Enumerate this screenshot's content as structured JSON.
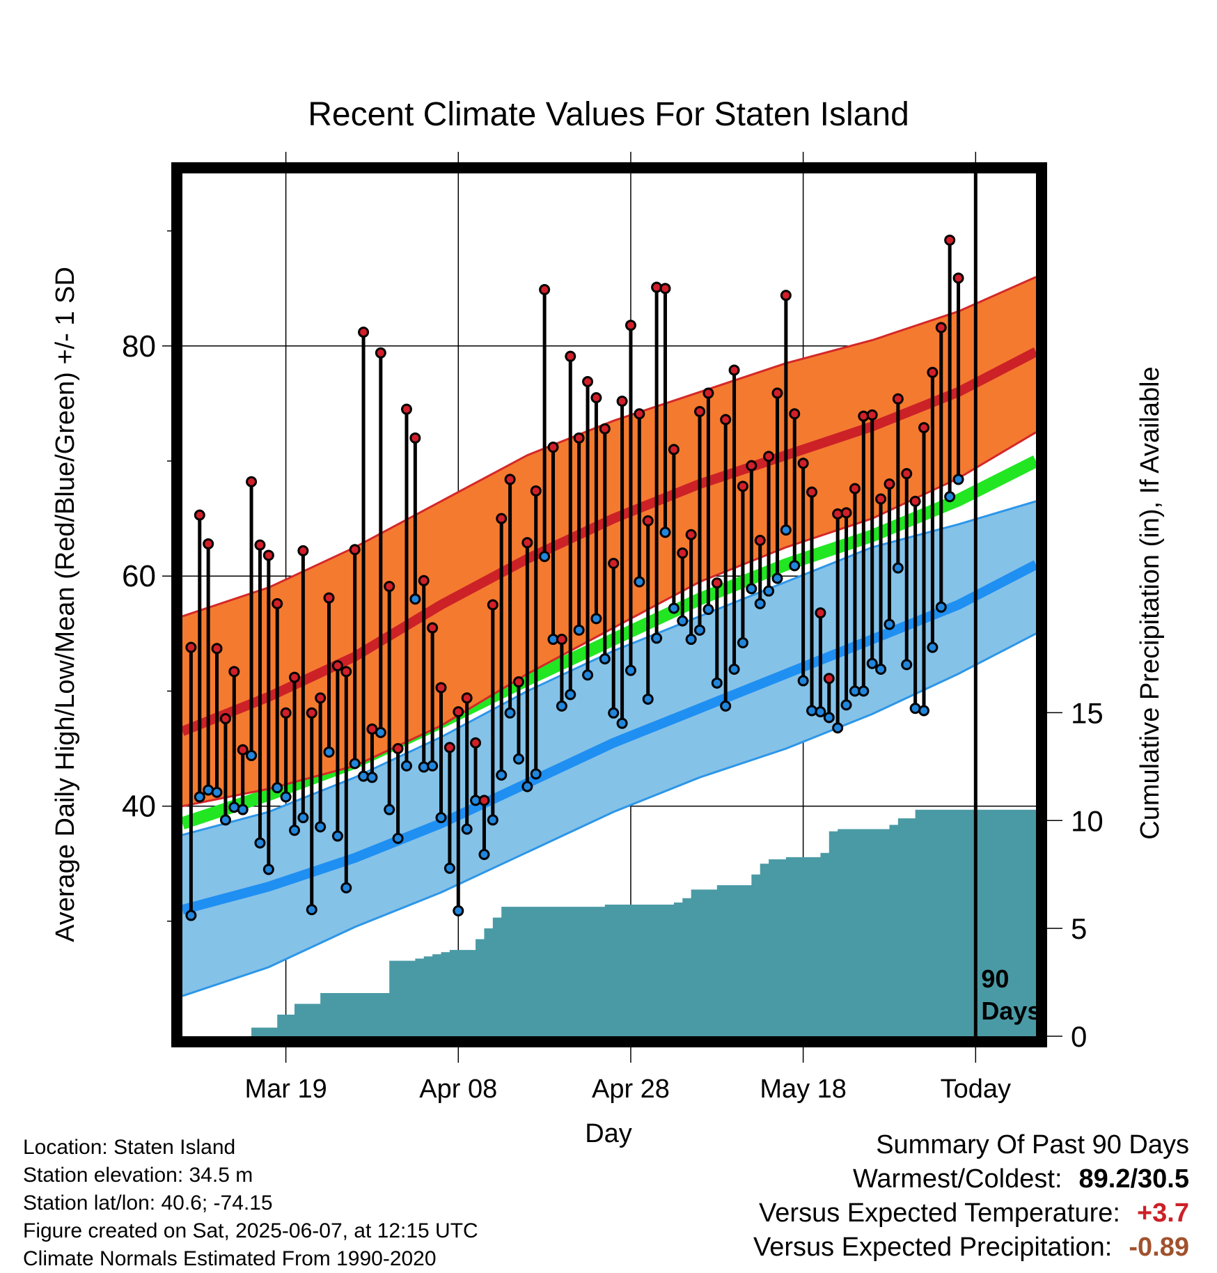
{
  "chart_data": {
    "type": "line",
    "title": "Recent Climate Values For Staten Island",
    "xlabel": "Day",
    "ylabel_left": "Average Daily High/Low/Mean (Red/Blue/Green) +/- 1 SD",
    "ylabel_right": "Cumulative Precipitation (in), If Available",
    "x_tick_labels": [
      "Mar 19",
      "Apr 08",
      "Apr 28",
      "May 18",
      "Today"
    ],
    "x_tick_days": [
      12,
      32,
      52,
      72,
      92
    ],
    "x_range_days": [
      0,
      99
    ],
    "y_left_range": [
      20,
      95
    ],
    "y_left_ticks": [
      {
        "value": 40,
        "label": "40"
      },
      {
        "value": 60,
        "label": "60"
      },
      {
        "value": 80,
        "label": "80"
      }
    ],
    "y_left_minor_ticks": [
      30,
      50,
      70,
      90
    ],
    "y_right_range": [
      0,
      40
    ],
    "y_right_ticks": [
      {
        "value": 0,
        "label": "0"
      },
      {
        "value": 5,
        "label": "5"
      },
      {
        "value": 10,
        "label": "10"
      },
      {
        "value": 15,
        "label": "15"
      }
    ],
    "today_marker": {
      "day": 92,
      "label_line1": "90",
      "label_line2": "Days"
    },
    "normals": {
      "days": [
        0,
        10,
        20,
        30,
        40,
        50,
        60,
        70,
        80,
        90,
        99
      ],
      "high_mean": [
        46.5,
        49.5,
        53.0,
        57.5,
        61.5,
        65.0,
        68.0,
        70.5,
        73.0,
        76.0,
        79.5
      ],
      "high_upper": [
        56.5,
        59.0,
        62.5,
        66.5,
        70.5,
        73.5,
        76.0,
        78.5,
        80.5,
        83.0,
        86.0
      ],
      "high_lower": [
        40.0,
        41.5,
        43.5,
        47.0,
        51.5,
        55.5,
        59.5,
        62.5,
        65.0,
        68.5,
        72.5
      ],
      "mean": [
        38.5,
        41.0,
        43.8,
        47.3,
        51.0,
        54.5,
        58.0,
        61.0,
        63.5,
        66.6,
        70.0
      ],
      "low_mean": [
        31.0,
        33.0,
        35.5,
        38.5,
        42.0,
        45.5,
        48.5,
        51.5,
        54.5,
        57.5,
        61.0
      ],
      "low_upper": [
        37.5,
        39.5,
        42.5,
        46.0,
        50.0,
        53.5,
        56.5,
        59.5,
        62.5,
        64.5,
        66.5
      ],
      "low_lower": [
        23.5,
        26.0,
        29.5,
        32.5,
        36.0,
        39.5,
        42.5,
        45.0,
        48.0,
        51.5,
        55.0
      ]
    },
    "daily_high": [
      53.8,
      65.3,
      62.8,
      53.7,
      47.6,
      51.7,
      44.9,
      68.2,
      62.7,
      61.8,
      57.6,
      48.1,
      51.2,
      62.2,
      48.1,
      49.4,
      58.1,
      52.2,
      51.7,
      62.3,
      81.2,
      46.7,
      79.4,
      59.1,
      45.0,
      74.5,
      72.0,
      59.6,
      55.5,
      50.3,
      45.1,
      48.2,
      49.4,
      45.5,
      40.5,
      57.5,
      65.0,
      68.4,
      50.8,
      62.9,
      67.4,
      84.9,
      71.2,
      54.5,
      79.1,
      72.0,
      76.9,
      75.5,
      72.8,
      61.1,
      75.2,
      81.8,
      74.1,
      64.8,
      85.1,
      85.0,
      71.0,
      62.0,
      63.6,
      74.3,
      75.9,
      59.4,
      73.6,
      77.9,
      67.8,
      69.6,
      63.1,
      70.4,
      75.9,
      84.4,
      74.1,
      69.8,
      67.3,
      56.8,
      51.1,
      65.4,
      65.5,
      67.6,
      73.9,
      74.0,
      66.7,
      68.0,
      75.4,
      68.9,
      66.5,
      72.9,
      77.7,
      81.6,
      89.2,
      85.9
    ],
    "daily_low": [
      30.5,
      40.8,
      41.4,
      41.2,
      38.8,
      39.9,
      39.7,
      44.4,
      36.8,
      34.5,
      41.6,
      40.8,
      37.9,
      39.0,
      31.0,
      38.2,
      44.7,
      37.4,
      32.9,
      43.7,
      42.6,
      42.5,
      46.4,
      39.7,
      37.2,
      43.5,
      58.0,
      43.4,
      43.5,
      39.0,
      34.6,
      30.9,
      38.0,
      40.5,
      35.8,
      38.8,
      42.7,
      48.1,
      44.1,
      41.7,
      42.8,
      61.7,
      54.5,
      48.7,
      49.7,
      55.3,
      51.4,
      56.3,
      52.8,
      48.1,
      47.2,
      51.8,
      59.5,
      49.3,
      54.6,
      63.8,
      57.2,
      56.1,
      54.5,
      55.3,
      57.1,
      50.7,
      48.7,
      51.9,
      54.2,
      58.9,
      57.6,
      58.7,
      59.8,
      64.0,
      60.9,
      50.9,
      48.3,
      48.2,
      47.7,
      46.8,
      48.8,
      50.0,
      50.0,
      52.4,
      51.9,
      55.8,
      60.7,
      52.3,
      48.5,
      48.3,
      53.8,
      57.3,
      66.9,
      68.4
    ],
    "cumulative_precip": [
      0,
      0,
      0,
      0,
      0,
      0,
      0,
      0,
      0.4,
      0.4,
      0.4,
      1.0,
      1.0,
      1.5,
      1.5,
      1.5,
      2.0,
      2.0,
      2.0,
      2.0,
      2.0,
      2.0,
      2.0,
      2.0,
      3.5,
      3.5,
      3.5,
      3.6,
      3.7,
      3.8,
      3.9,
      4.0,
      4.0,
      4.0,
      4.5,
      5.0,
      5.5,
      6.0,
      6.0,
      6.0,
      6.0,
      6.0,
      6.0,
      6.0,
      6.0,
      6.0,
      6.0,
      6.0,
      6.0,
      6.1,
      6.1,
      6.1,
      6.1,
      6.1,
      6.1,
      6.1,
      6.1,
      6.2,
      6.4,
      6.8,
      6.8,
      6.8,
      7.0,
      7.0,
      7.0,
      7.0,
      7.5,
      8.0,
      8.2,
      8.2,
      8.3,
      8.3,
      8.3,
      8.3,
      8.5,
      9.5,
      9.6,
      9.6,
      9.6,
      9.6,
      9.6,
      9.6,
      9.8,
      10.1,
      10.1,
      10.5,
      10.5,
      10.5,
      10.5,
      10.5,
      10.5,
      10.5,
      10.5,
      10.5,
      10.5,
      10.5,
      10.5,
      10.5,
      10.5,
      10.5,
      10.5
    ]
  },
  "colors": {
    "high_band": "#f47a30",
    "high_band_edge": "#d42828",
    "high_mean_line": "#cc2127",
    "mean_line": "#22e622",
    "low_band": "#85c2e8",
    "low_band_edge": "#2d96e8",
    "low_mean_line": "#1f8ff2",
    "precip_fill": "#4a9aa5",
    "high_dot": "#d21f2a",
    "low_dot": "#2186dc",
    "above_normal": "#cc2127",
    "precip_deficit": "#a0522d"
  },
  "footer": {
    "location": "Location: Staten Island",
    "elevation": "Station elevation: 34.5 m",
    "latlon": "Station lat/lon: 40.6; -74.15",
    "created": "Figure created on Sat, 2025-06-07, at 12:15 UTC",
    "normals": "Climate Normals Estimated From 1990-2020"
  },
  "summary": {
    "heading": "Summary Of Past 90 Days",
    "warmest_coldest_label": "Warmest/Coldest:",
    "warmest_coldest_value": "89.2/30.5",
    "temp_label": "Versus Expected Temperature:",
    "temp_value": "+3.7",
    "precip_label": "Versus Expected Precipitation:",
    "precip_value": "-0.89"
  }
}
